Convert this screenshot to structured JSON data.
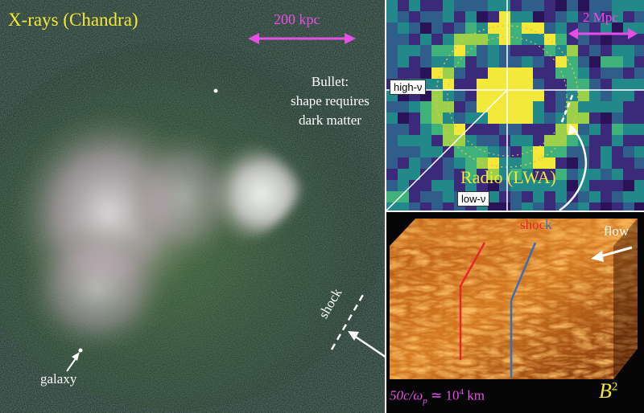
{
  "xray_panel": {
    "title": "X-rays (Chandra)",
    "scale_label": "200 kpc",
    "bullet_line1": "Bullet:",
    "bullet_line2": "shape requires",
    "bullet_line3": "dark matter",
    "galaxy_label": "galaxy",
    "shock_label": "shock"
  },
  "radio_panel": {
    "title": "Radio (LWA)",
    "scale_label": "2 Mpc",
    "high_label": "high-ν",
    "low_label": "low-ν"
  },
  "sim_panel": {
    "shock_prefix": "s",
    "shock_middle": "hoc",
    "shock_suffix": "k",
    "flow_label": "flow",
    "scale_label": "50c/ω",
    "scale_sub": "p",
    "scale_rest": " ≃ 10",
    "scale_exp": "4",
    "scale_unit": " km",
    "field_label": "B",
    "field_exp": "2"
  },
  "colors": {
    "magenta": "#e64fe6",
    "yellow": "#f4e83a",
    "shock_red": "#e8262a",
    "shock_blue": "#3a6fb8"
  }
}
